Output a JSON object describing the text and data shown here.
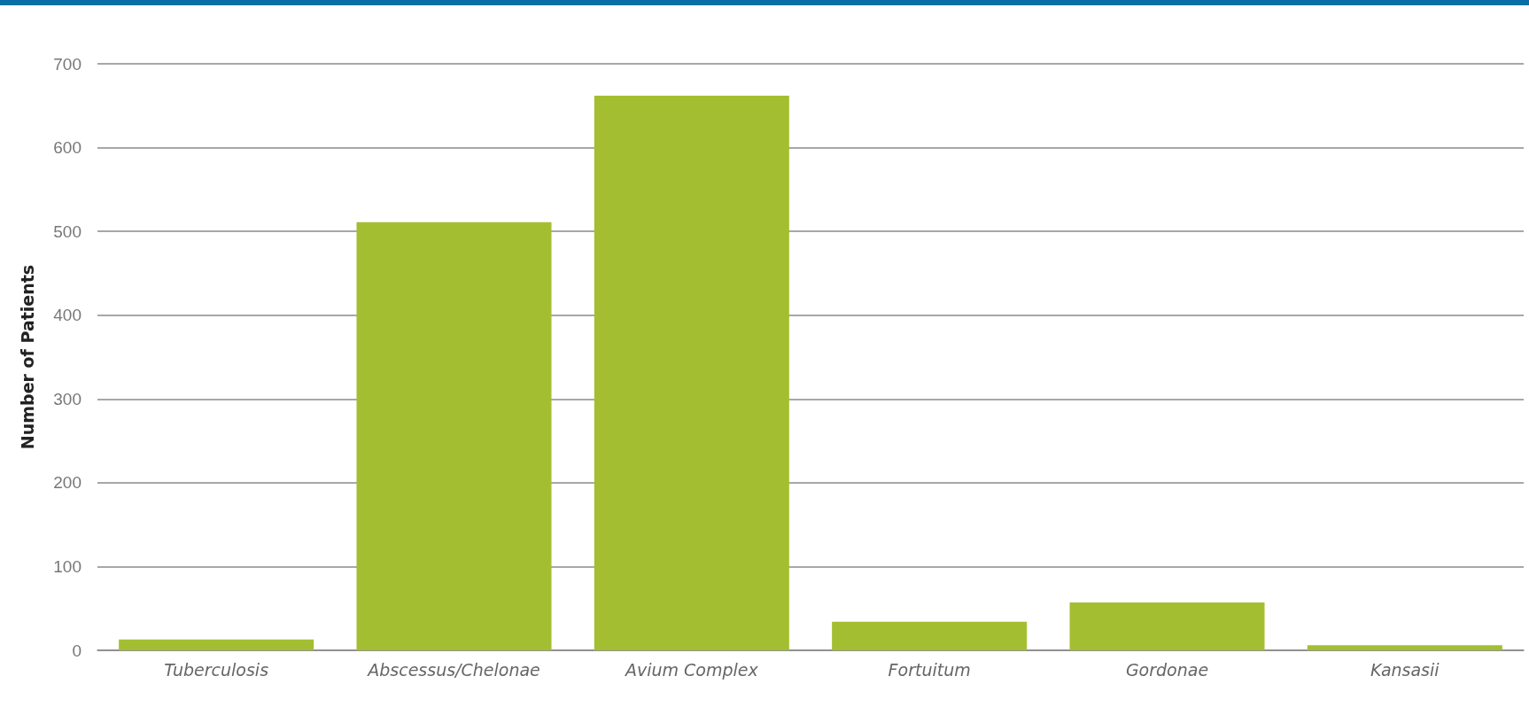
{
  "chart_data": {
    "type": "bar",
    "ylabel": "Number of Patients",
    "categories": [
      "Tuberculosis",
      "Abscessus/Chelonae",
      "Avium Complex",
      "Fortuitum",
      "Gordonae",
      "Kansasii"
    ],
    "values": [
      13,
      511,
      662,
      34,
      57,
      6
    ],
    "color": "#a3bf31",
    "ylim": [
      0,
      700
    ],
    "yticks": [
      0,
      100,
      200,
      300,
      400,
      500,
      600,
      700
    ],
    "grid": "y"
  }
}
